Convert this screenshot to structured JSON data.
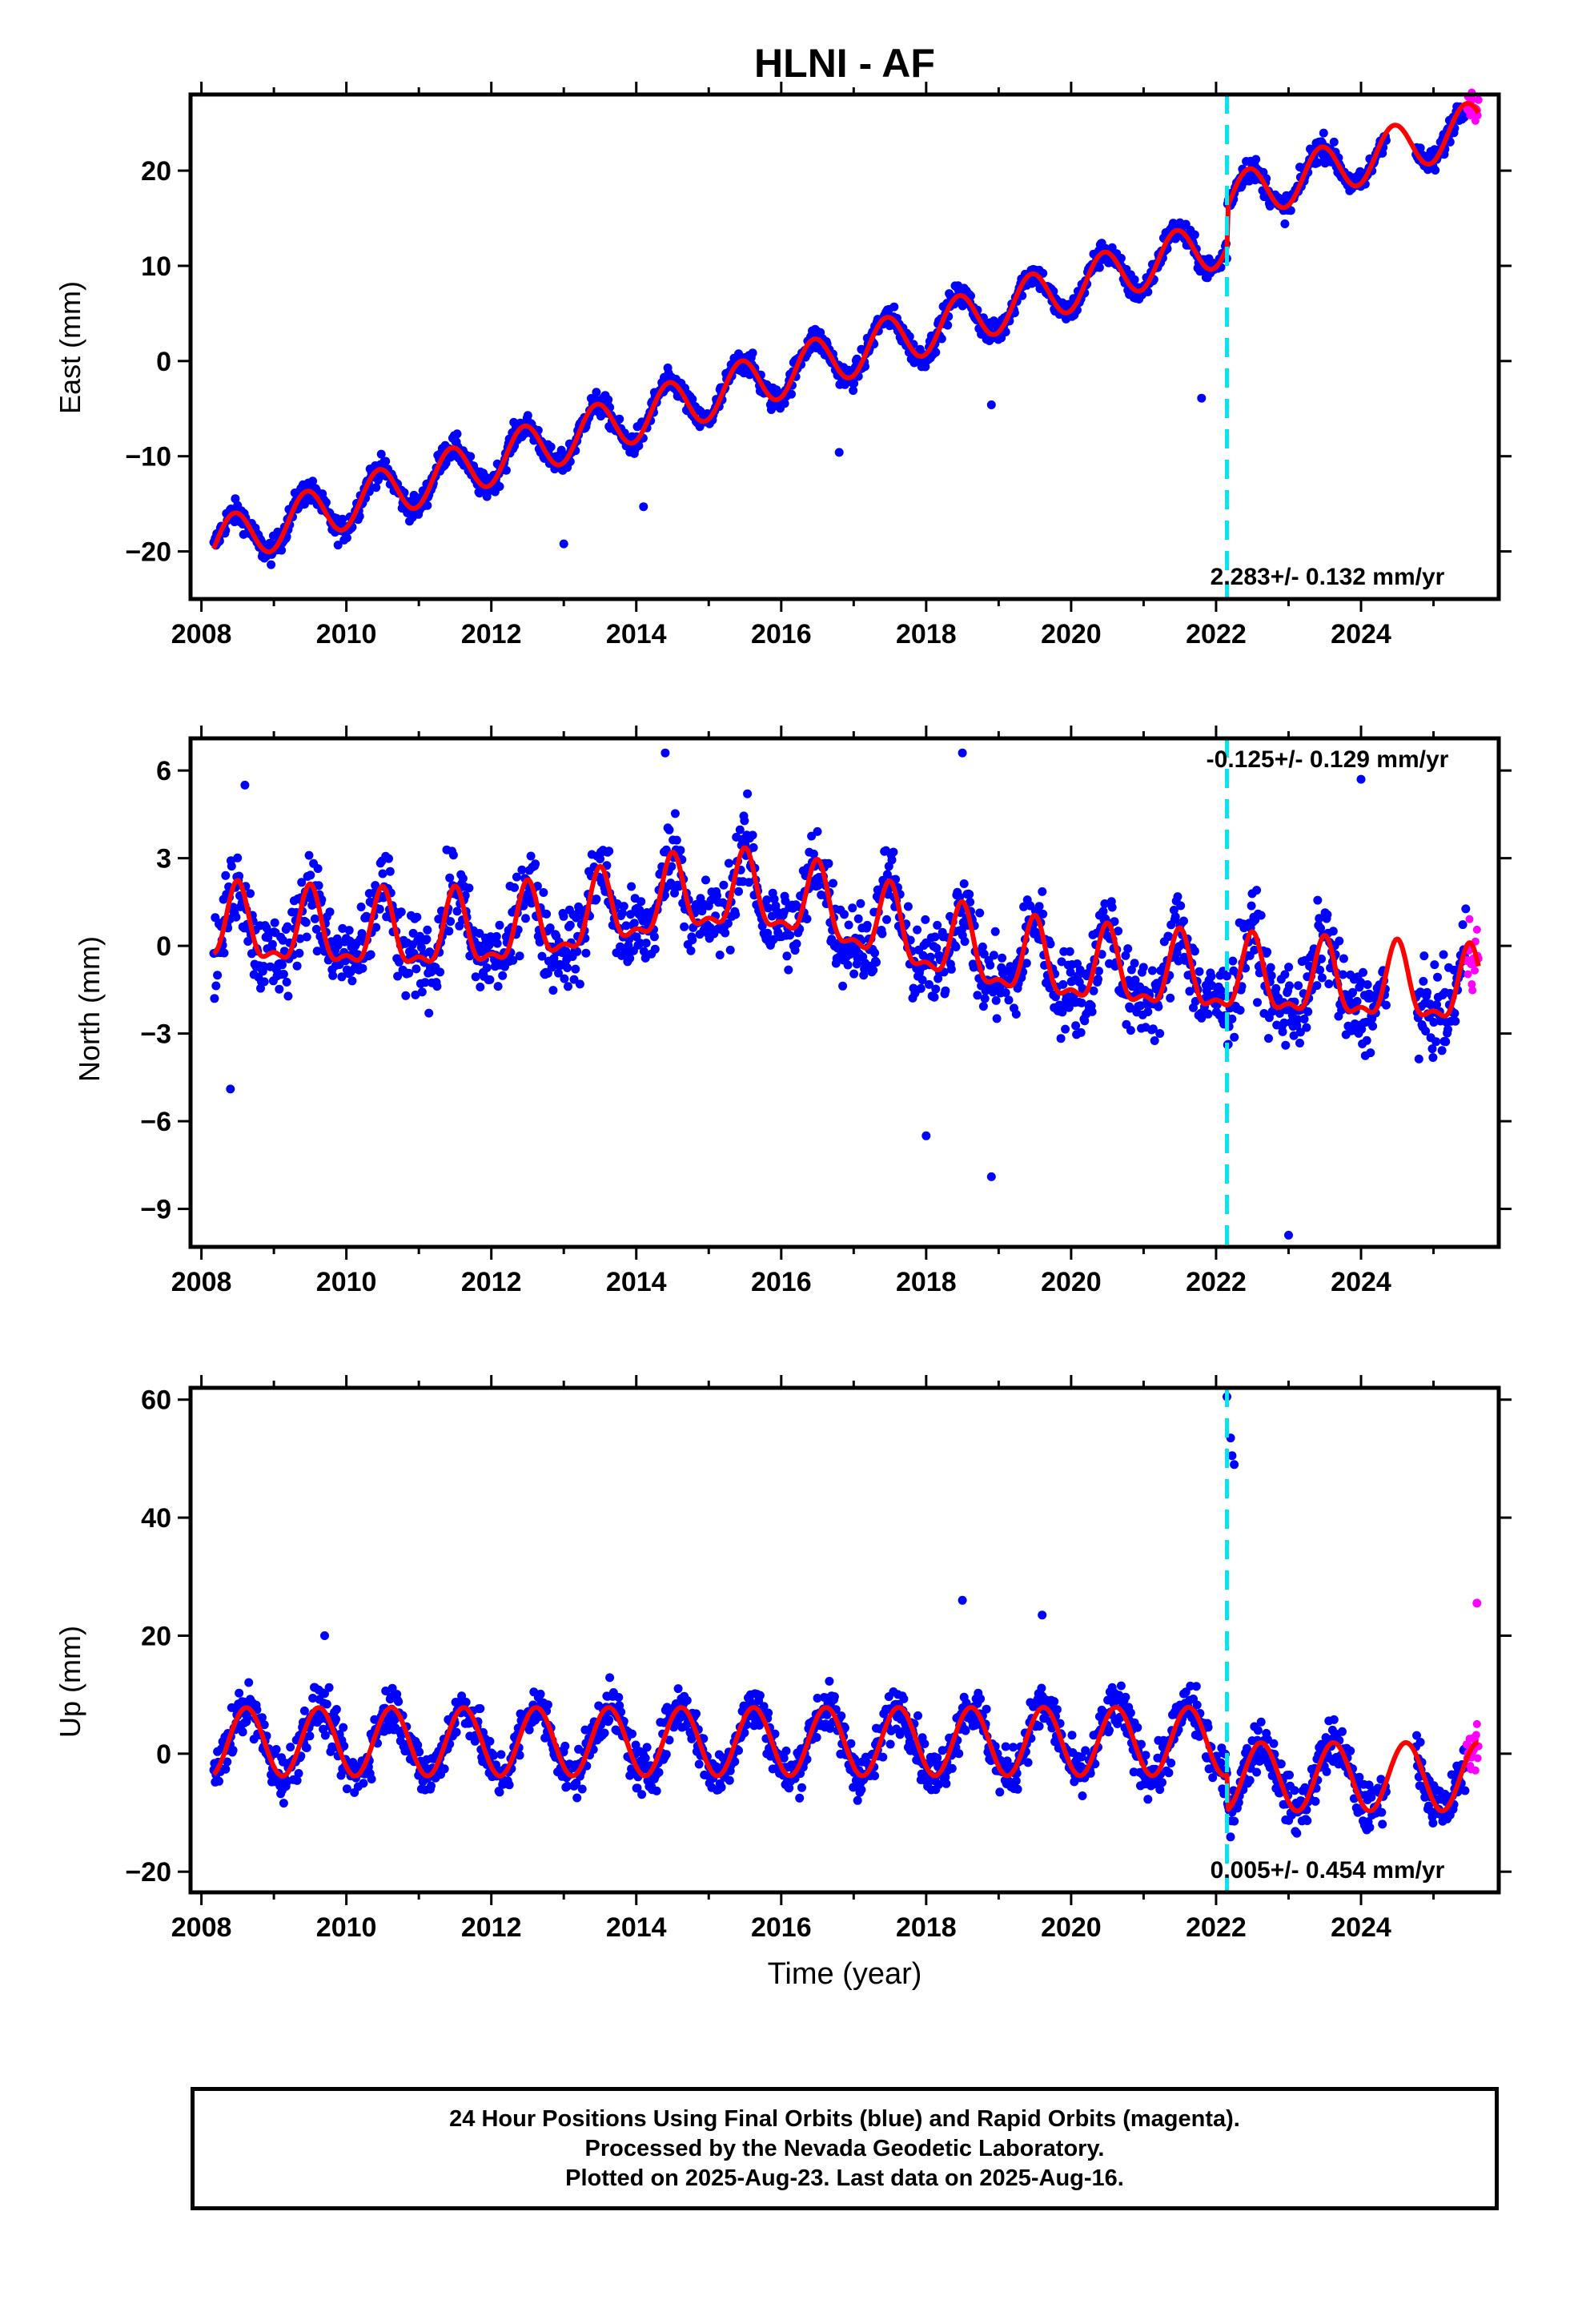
{
  "title": "HLNI - AF",
  "colors": {
    "final_orbits": "#0000ff",
    "rapid_orbits": "#ff00ff",
    "model": "#ff0000",
    "equipment_change": "#00e5ee",
    "frame": "#000000"
  },
  "x_axis_label": "Time (year)",
  "footer": {
    "line1": "24 Hour Positions Using Final Orbits (blue) and Rapid Orbits (magenta).",
    "line2": "Processed by the Nevada Geodetic Laboratory.",
    "line3": "Plotted on 2025-Aug-23. Last data on 2025-Aug-16."
  },
  "chart_data": [
    {
      "type": "scatter",
      "component": "east",
      "ylabel": "East (mm)",
      "rate_label": "2.283+/- 0.132 mm/yr",
      "rate_position": "bottom-right",
      "xlim": [
        2007.85,
        2025.9
      ],
      "ylim": [
        -25,
        28
      ],
      "xticks": [
        "2008",
        "2010",
        "2012",
        "2014",
        "2016",
        "2018",
        "2020",
        "2022",
        "2024"
      ],
      "yticks": [
        "20",
        "10",
        "0",
        "−10",
        "−20"
      ],
      "ytick_values": [
        20,
        10,
        0,
        -10,
        -20
      ],
      "data_start": 2008.17,
      "data_end": 2025.62,
      "rapid_start": 2025.45,
      "equipment_change_year": 2022.15,
      "trend_intercept_at_2008": -19.6,
      "rate": 2.283,
      "offset_at_change": 4.2,
      "annual_amplitude": 2.6,
      "annual_peak_phase": 0.45,
      "scatter": 1.2,
      "outliers": [
        [
          2013.0,
          -19.2
        ],
        [
          2014.1,
          -15.3
        ],
        [
          2016.8,
          -9.6
        ],
        [
          2018.9,
          -4.6
        ],
        [
          2021.8,
          -3.9
        ]
      ],
      "gap": [
        2024.35,
        2024.75
      ]
    },
    {
      "type": "scatter",
      "component": "north",
      "ylabel": "North (mm)",
      "rate_label": "-0.125+/- 0.129 mm/yr",
      "rate_position": "top-right",
      "xlim": [
        2007.85,
        2025.9
      ],
      "ylim": [
        -10.3,
        7.1
      ],
      "xticks": [
        "2008",
        "2010",
        "2012",
        "2014",
        "2016",
        "2018",
        "2020",
        "2022",
        "2024"
      ],
      "yticks": [
        "6",
        "3",
        "0",
        "−3",
        "−6",
        "−9"
      ],
      "ytick_values": [
        6,
        3,
        0,
        -3,
        -6,
        -9
      ],
      "data_start": 2008.17,
      "data_end": 2025.62,
      "rapid_start": 2025.45,
      "equipment_change_year": 2022.15,
      "trend_intercept_at_2008": 0.6,
      "rate": -0.125,
      "bump_center": 2015.5,
      "bump_height": 2.0,
      "annual_amplitude": 1.2,
      "semiannual_amplitude": 0.5,
      "annual_peak_phase": 0.5,
      "scatter": 1.3,
      "outliers": [
        [
          2008.4,
          -4.9
        ],
        [
          2008.6,
          5.5
        ],
        [
          2014.4,
          6.6
        ],
        [
          2018.5,
          6.6
        ],
        [
          2018.0,
          -6.5
        ],
        [
          2018.9,
          -7.9
        ],
        [
          2023.0,
          -9.9
        ],
        [
          2024.0,
          5.7
        ]
      ],
      "gap": [
        2024.35,
        2024.75
      ]
    },
    {
      "type": "scatter",
      "component": "up",
      "ylabel": "Up (mm)",
      "rate_label": "0.005+/- 0.454 mm/yr",
      "rate_position": "bottom-right",
      "xlim": [
        2007.85,
        2025.9
      ],
      "ylim": [
        -23.5,
        62
      ],
      "xticks": [
        "2008",
        "2010",
        "2012",
        "2014",
        "2016",
        "2018",
        "2020",
        "2022",
        "2024"
      ],
      "yticks": [
        "60",
        "40",
        "20",
        "0",
        "−20"
      ],
      "ytick_values": [
        60,
        40,
        20,
        0,
        -20
      ],
      "data_start": 2008.17,
      "data_end": 2025.62,
      "rapid_start": 2025.45,
      "equipment_change_year": 2022.15,
      "trend_intercept_at_2008": 2.0,
      "rate": 0.005,
      "offset_at_change": -6.0,
      "annual_amplitude": 5.8,
      "annual_peak_phase": 0.62,
      "scatter": 3.8,
      "outliers": [
        [
          2009.7,
          20.0
        ],
        [
          2018.5,
          26.0
        ],
        [
          2019.6,
          23.5
        ],
        [
          2022.15,
          60.5
        ],
        [
          2022.2,
          53.5
        ],
        [
          2022.22,
          50.5
        ],
        [
          2022.25,
          49.0
        ],
        [
          2025.6,
          25.5
        ]
      ],
      "gap": [
        2024.35,
        2024.75
      ]
    }
  ]
}
